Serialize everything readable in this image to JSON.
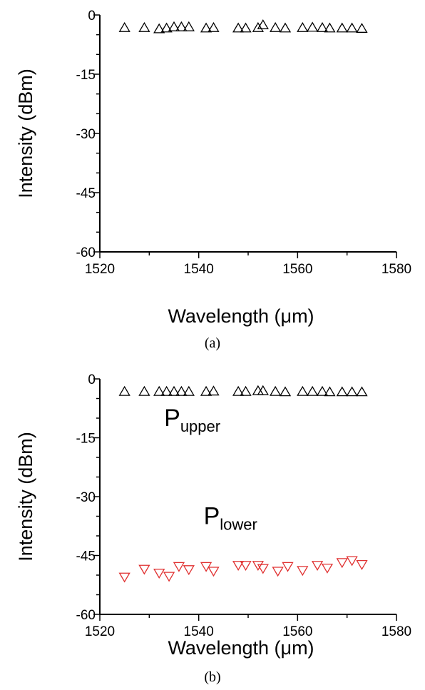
{
  "chart_data": [
    {
      "type": "scatter",
      "panel_label": "(a)",
      "xlabel": "Wavelength (μm)",
      "ylabel": "Intensity (dBm)",
      "xlim": [
        1520,
        1580
      ],
      "ylim": [
        -60,
        0
      ],
      "xticks": [
        "1520",
        "1540",
        "1560",
        "1580"
      ],
      "yticks": [
        "0",
        "-15",
        "-30",
        "-45",
        "-60"
      ],
      "annotations": [],
      "series": [
        {
          "marker": "triangle-up",
          "color": "#000000",
          "x": [
            1525,
            1529,
            1532,
            1533.5,
            1535,
            1536.5,
            1538,
            1541.5,
            1543,
            1548,
            1549.5,
            1552,
            1553,
            1555.5,
            1557.5,
            1561,
            1563,
            1565,
            1566.5,
            1569,
            1571,
            1573
          ],
          "y": [
            -3.2,
            -3.2,
            -3.5,
            -3.3,
            -3.0,
            -3.0,
            -3.0,
            -3.3,
            -3.2,
            -3.3,
            -3.3,
            -3.2,
            -2.5,
            -3.2,
            -3.3,
            -3.2,
            -3.1,
            -3.2,
            -3.3,
            -3.3,
            -3.3,
            -3.4
          ]
        }
      ]
    },
    {
      "type": "scatter",
      "panel_label": "(b)",
      "xlabel": "Wavelength (μm)",
      "ylabel": "Intensity (dBm)",
      "xlim": [
        1520,
        1580
      ],
      "ylim": [
        -60,
        0
      ],
      "xticks": [
        "1520",
        "1540",
        "1560",
        "1580"
      ],
      "yticks": [
        "0",
        "-15",
        "-30",
        "-45",
        "-60"
      ],
      "annotations": [
        {
          "main": "P",
          "sub": "upper",
          "x": 1533,
          "y": -12
        },
        {
          "main": "P",
          "sub": "lower",
          "x": 1541,
          "y": -37
        }
      ],
      "series": [
        {
          "marker": "triangle-up",
          "color": "#000000",
          "x": [
            1525,
            1529,
            1532,
            1533.5,
            1535,
            1536.5,
            1538,
            1541.5,
            1543,
            1548,
            1549.5,
            1552,
            1553,
            1555.5,
            1557.5,
            1561,
            1563,
            1565,
            1566.5,
            1569,
            1571,
            1573
          ],
          "y": [
            -3.2,
            -3.2,
            -3.2,
            -3.2,
            -3.2,
            -3.2,
            -3.2,
            -3.2,
            -3.1,
            -3.2,
            -3.2,
            -3.0,
            -3.0,
            -3.2,
            -3.3,
            -3.2,
            -3.2,
            -3.2,
            -3.3,
            -3.3,
            -3.3,
            -3.3
          ]
        },
        {
          "marker": "triangle-down",
          "color": "#e03030",
          "x": [
            1525,
            1529,
            1532,
            1534,
            1536,
            1538,
            1541.5,
            1543,
            1548,
            1549.5,
            1552,
            1553,
            1556,
            1558,
            1561,
            1564,
            1566,
            1569,
            1571,
            1573
          ],
          "y": [
            -50.5,
            -48.5,
            -49.5,
            -50.3,
            -47.8,
            -48.6,
            -47.8,
            -49,
            -47.5,
            -47.5,
            -47.5,
            -48.3,
            -49,
            -47.8,
            -48.8,
            -47.5,
            -48.2,
            -46.8,
            -46.3,
            -47.3
          ]
        }
      ]
    }
  ]
}
